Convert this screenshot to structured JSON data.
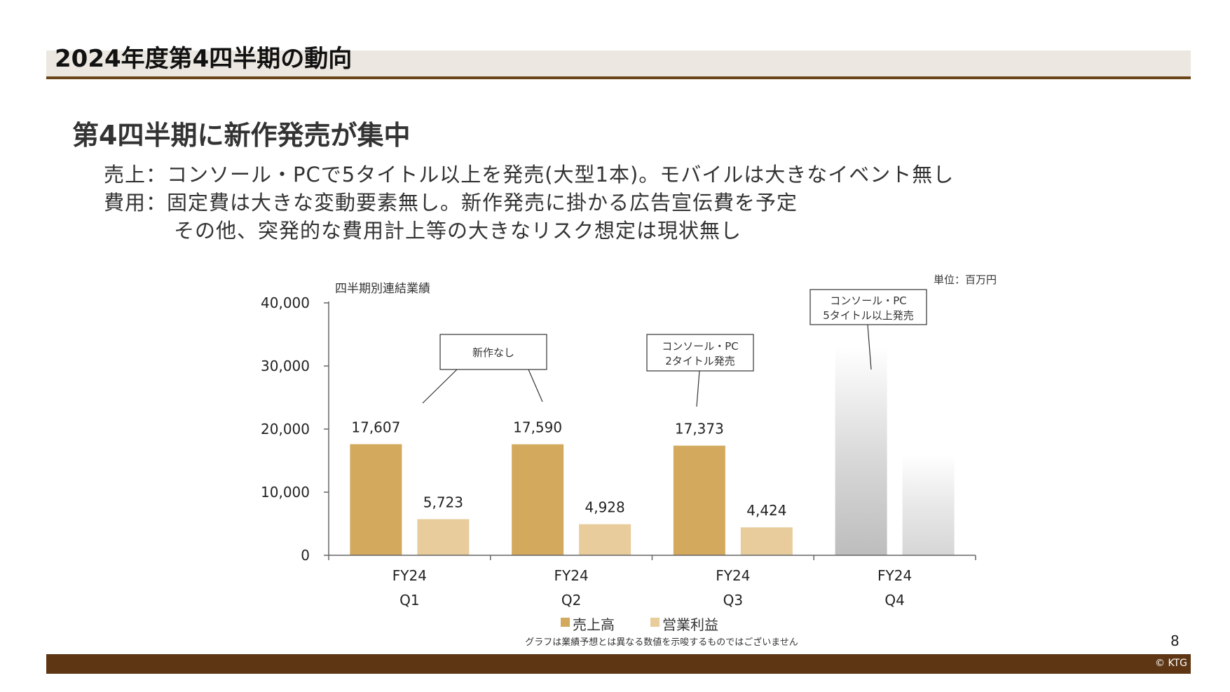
{
  "slide": {
    "title": "2024年度第4四半期の動向",
    "headline": "第4四半期に新作発売が集中",
    "lines": [
      "売上：コンソール・PCで5タイトル以上を発売(大型1本)。モバイルは大きなイベント無し",
      "費用：固定費は大きな変動要素無し。新作発売に掛かる広告宣伝費を予定",
      "その他、突発的な費用計上等の大きなリスク想定は現状無し"
    ],
    "page_number": "8",
    "copyright": "© KTG"
  },
  "chart_data": {
    "type": "bar",
    "title": "四半期別連結業績",
    "unit_label": "単位：百万円",
    "categories": [
      "FY24 Q1",
      "FY24 Q2",
      "FY24 Q3",
      "FY24 Q4"
    ],
    "category_lines": [
      [
        "FY24",
        "Q1"
      ],
      [
        "FY24",
        "Q2"
      ],
      [
        "FY24",
        "Q3"
      ],
      [
        "FY24",
        "Q4"
      ]
    ],
    "ylim": [
      0,
      40000
    ],
    "yticks": [
      0,
      10000,
      20000,
      30000,
      40000
    ],
    "ytick_labels": [
      "0",
      "10,000",
      "20,000",
      "30,000",
      "40,000"
    ],
    "series": [
      {
        "name": "売上高",
        "values": [
          17607,
          17590,
          17373,
          null
        ],
        "labels": [
          "17,607",
          "17,590",
          "17,373",
          ""
        ],
        "color": "#d3a95e"
      },
      {
        "name": "営業利益",
        "values": [
          5723,
          4928,
          4424,
          null
        ],
        "labels": [
          "5,723",
          "4,928",
          "4,424",
          ""
        ],
        "color": "#e8cc9c"
      }
    ],
    "forecast_placeholder": {
      "category": "FY24 Q4",
      "color": "#bdbdbd"
    },
    "callouts": [
      {
        "lines": [
          "新作なし"
        ]
      },
      {
        "lines": [
          "コンソール・PC",
          "2タイトル発売"
        ]
      },
      {
        "lines": [
          "コンソール・PC",
          "5タイトル以上発売"
        ]
      }
    ],
    "note": "グラフは業績予想とは異なる数値を示唆するものではございません",
    "legend_position": "bottom",
    "grid": false
  }
}
